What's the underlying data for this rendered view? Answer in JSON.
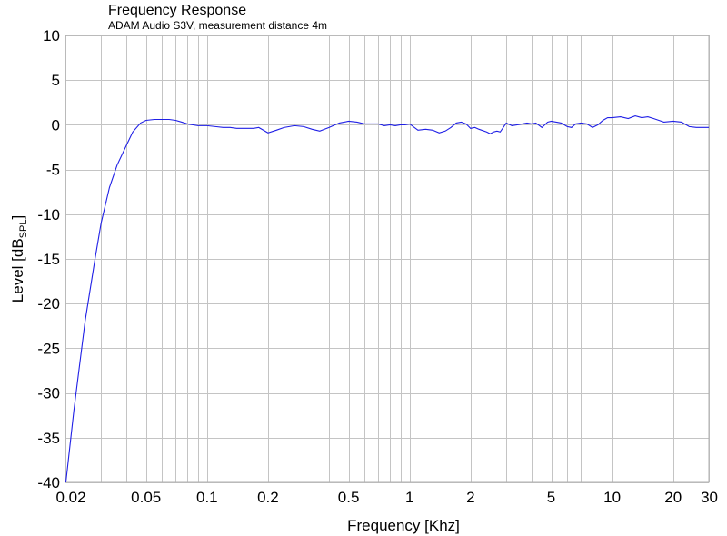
{
  "chart_data": {
    "type": "line",
    "title": "Frequency Response",
    "subtitle": "ADAM Audio S3V, measurement distance 4m",
    "xlabel": "Frequency [Khz]",
    "ylabel": {
      "main": "Level [dB",
      "sub": "SPL",
      "close": "]"
    },
    "x_scale": "log",
    "xlim": [
      0.02,
      30
    ],
    "ylim": [
      -40,
      10
    ],
    "x_ticks": [
      {
        "value": 0.02,
        "label": "0.02"
      },
      {
        "value": 0.05,
        "label": "0.05"
      },
      {
        "value": 0.1,
        "label": "0.1"
      },
      {
        "value": 0.2,
        "label": "0.2"
      },
      {
        "value": 0.5,
        "label": "0.5"
      },
      {
        "value": 1,
        "label": "1"
      },
      {
        "value": 2,
        "label": "2"
      },
      {
        "value": 5,
        "label": "5"
      },
      {
        "value": 10,
        "label": "10"
      },
      {
        "value": 20,
        "label": "20"
      },
      {
        "value": 30,
        "label": "30"
      }
    ],
    "y_ticks": [
      {
        "value": 10,
        "label": "10"
      },
      {
        "value": 5,
        "label": "5"
      },
      {
        "value": 0,
        "label": "0"
      },
      {
        "value": -5,
        "label": "-5"
      },
      {
        "value": -10,
        "label": "-10"
      },
      {
        "value": -15,
        "label": "-15"
      },
      {
        "value": -20,
        "label": "-20"
      },
      {
        "value": -25,
        "label": "-25"
      },
      {
        "value": -30,
        "label": "-30"
      },
      {
        "value": -35,
        "label": "-35"
      },
      {
        "value": -40,
        "label": "-40"
      }
    ],
    "grid": true,
    "x_grid": [
      0.02,
      0.03,
      0.04,
      0.05,
      0.06,
      0.07,
      0.08,
      0.09,
      0.1,
      0.2,
      0.3,
      0.4,
      0.5,
      0.6,
      0.7,
      0.8,
      0.9,
      1,
      2,
      3,
      4,
      5,
      6,
      7,
      8,
      9,
      10,
      20,
      30
    ],
    "y_grid": [
      10,
      5,
      0,
      -5,
      -10,
      -15,
      -20,
      -25,
      -30,
      -35,
      -40
    ],
    "series": [
      {
        "color": "#1f1fe6",
        "x": [
          0.0201,
          0.022,
          0.025,
          0.028,
          0.03,
          0.033,
          0.036,
          0.04,
          0.043,
          0.047,
          0.05,
          0.055,
          0.06,
          0.065,
          0.07,
          0.075,
          0.08,
          0.09,
          0.1,
          0.11,
          0.12,
          0.13,
          0.14,
          0.15,
          0.16,
          0.17,
          0.18,
          0.2,
          0.22,
          0.24,
          0.27,
          0.3,
          0.33,
          0.36,
          0.4,
          0.45,
          0.5,
          0.55,
          0.6,
          0.65,
          0.7,
          0.75,
          0.8,
          0.85,
          0.9,
          0.95,
          1,
          1.1,
          1.2,
          1.3,
          1.4,
          1.5,
          1.6,
          1.7,
          1.8,
          1.9,
          2,
          2.1,
          2.2,
          2.4,
          2.5,
          2.6,
          2.7,
          2.8,
          2.9,
          3,
          3.2,
          3.4,
          3.6,
          3.8,
          4,
          4.2,
          4.5,
          4.8,
          5,
          5.3,
          5.6,
          6,
          6.3,
          6.6,
          7,
          7.5,
          8,
          8.5,
          9,
          9.5,
          10,
          11,
          12,
          13,
          14,
          15,
          16,
          17,
          18,
          20,
          22,
          24,
          26,
          30
        ],
        "y": [
          -40,
          -32,
          -22,
          -15,
          -11,
          -7,
          -4.5,
          -2.3,
          -0.8,
          0.2,
          0.5,
          0.6,
          0.6,
          0.6,
          0.5,
          0.3,
          0.1,
          -0.1,
          -0.1,
          -0.2,
          -0.3,
          -0.3,
          -0.4,
          -0.4,
          -0.4,
          -0.4,
          -0.3,
          -0.9,
          -0.6,
          -0.3,
          -0.1,
          -0.2,
          -0.5,
          -0.7,
          -0.3,
          0.2,
          0.4,
          0.3,
          0.1,
          0.1,
          0.1,
          -0.1,
          0,
          -0.1,
          0,
          0,
          0.1,
          -0.6,
          -0.5,
          -0.6,
          -0.9,
          -0.7,
          -0.3,
          0.2,
          0.3,
          0.1,
          -0.4,
          -0.3,
          -0.5,
          -0.8,
          -1,
          -0.8,
          -0.7,
          -0.8,
          -0.3,
          0.2,
          -0.1,
          0,
          0.1,
          0.2,
          0.1,
          0.2,
          -0.3,
          0.3,
          0.4,
          0.3,
          0.2,
          -0.2,
          -0.3,
          0.1,
          0.2,
          0.1,
          -0.3,
          0,
          0.5,
          0.8,
          0.8,
          0.9,
          0.7,
          1,
          0.8,
          0.9,
          0.7,
          0.5,
          0.3,
          0.4,
          0.3,
          -0.2,
          -0.3,
          -0.3
        ]
      }
    ]
  }
}
